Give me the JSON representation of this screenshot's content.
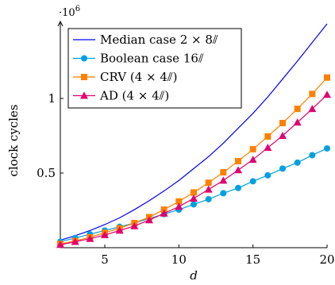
{
  "chart_data": {
    "type": "line",
    "xlabel": "d",
    "ylabel": "clock cycles",
    "y_scale_label": "·10^6",
    "xlim": [
      2,
      20
    ],
    "ylim": [
      0,
      1.5
    ],
    "x_ticks": [
      5,
      10,
      15,
      20
    ],
    "y_ticks": [
      0.5,
      1
    ],
    "x_tick_labels": [
      "5",
      "10",
      "15",
      "20"
    ],
    "y_tick_labels": [
      "0.5",
      "1"
    ],
    "grid": false,
    "legend_position": "top-left",
    "series": [
      {
        "name": "Median case 2 × 8⫽",
        "color": "#0000ff",
        "marker": "none",
        "x": [
          2,
          3,
          4,
          5,
          6,
          7,
          8,
          9,
          10,
          11,
          12,
          13,
          14,
          15,
          16,
          17,
          18,
          19,
          20
        ],
        "y": [
          0.05,
          0.08,
          0.115,
          0.155,
          0.2,
          0.255,
          0.315,
          0.38,
          0.45,
          0.53,
          0.61,
          0.7,
          0.8,
          0.9,
          1.01,
          1.13,
          1.25,
          1.375,
          1.5
        ]
      },
      {
        "name": "Boolean case 16⫽",
        "color": "#00a0e0",
        "marker": "circle",
        "x": [
          2,
          3,
          4,
          5,
          6,
          7,
          8,
          9,
          10,
          11,
          12,
          13,
          14,
          15,
          16,
          17,
          18,
          19,
          20
        ],
        "y": [
          0.04,
          0.065,
          0.09,
          0.115,
          0.14,
          0.165,
          0.195,
          0.225,
          0.255,
          0.29,
          0.325,
          0.365,
          0.4,
          0.445,
          0.485,
          0.53,
          0.57,
          0.62,
          0.665
        ]
      },
      {
        "name": "CRV (4 × 4⫽)",
        "color": "#ff8000",
        "marker": "square",
        "x": [
          2,
          3,
          4,
          5,
          6,
          7,
          8,
          9,
          10,
          11,
          12,
          13,
          14,
          15,
          16,
          17,
          18,
          19,
          20
        ],
        "y": [
          0.025,
          0.045,
          0.07,
          0.1,
          0.13,
          0.165,
          0.205,
          0.255,
          0.31,
          0.37,
          0.435,
          0.505,
          0.58,
          0.66,
          0.745,
          0.835,
          0.93,
          1.03,
          1.14
        ]
      },
      {
        "name": "AD (4 × 4⫽)",
        "color": "#e00070",
        "marker": "triangle",
        "x": [
          2,
          3,
          4,
          5,
          6,
          7,
          8,
          9,
          10,
          11,
          12,
          13,
          14,
          15,
          16,
          17,
          18,
          19,
          20
        ],
        "y": [
          0.02,
          0.04,
          0.06,
          0.085,
          0.115,
          0.145,
          0.185,
          0.23,
          0.275,
          0.33,
          0.39,
          0.45,
          0.52,
          0.59,
          0.67,
          0.75,
          0.84,
          0.93,
          1.025
        ]
      }
    ]
  }
}
